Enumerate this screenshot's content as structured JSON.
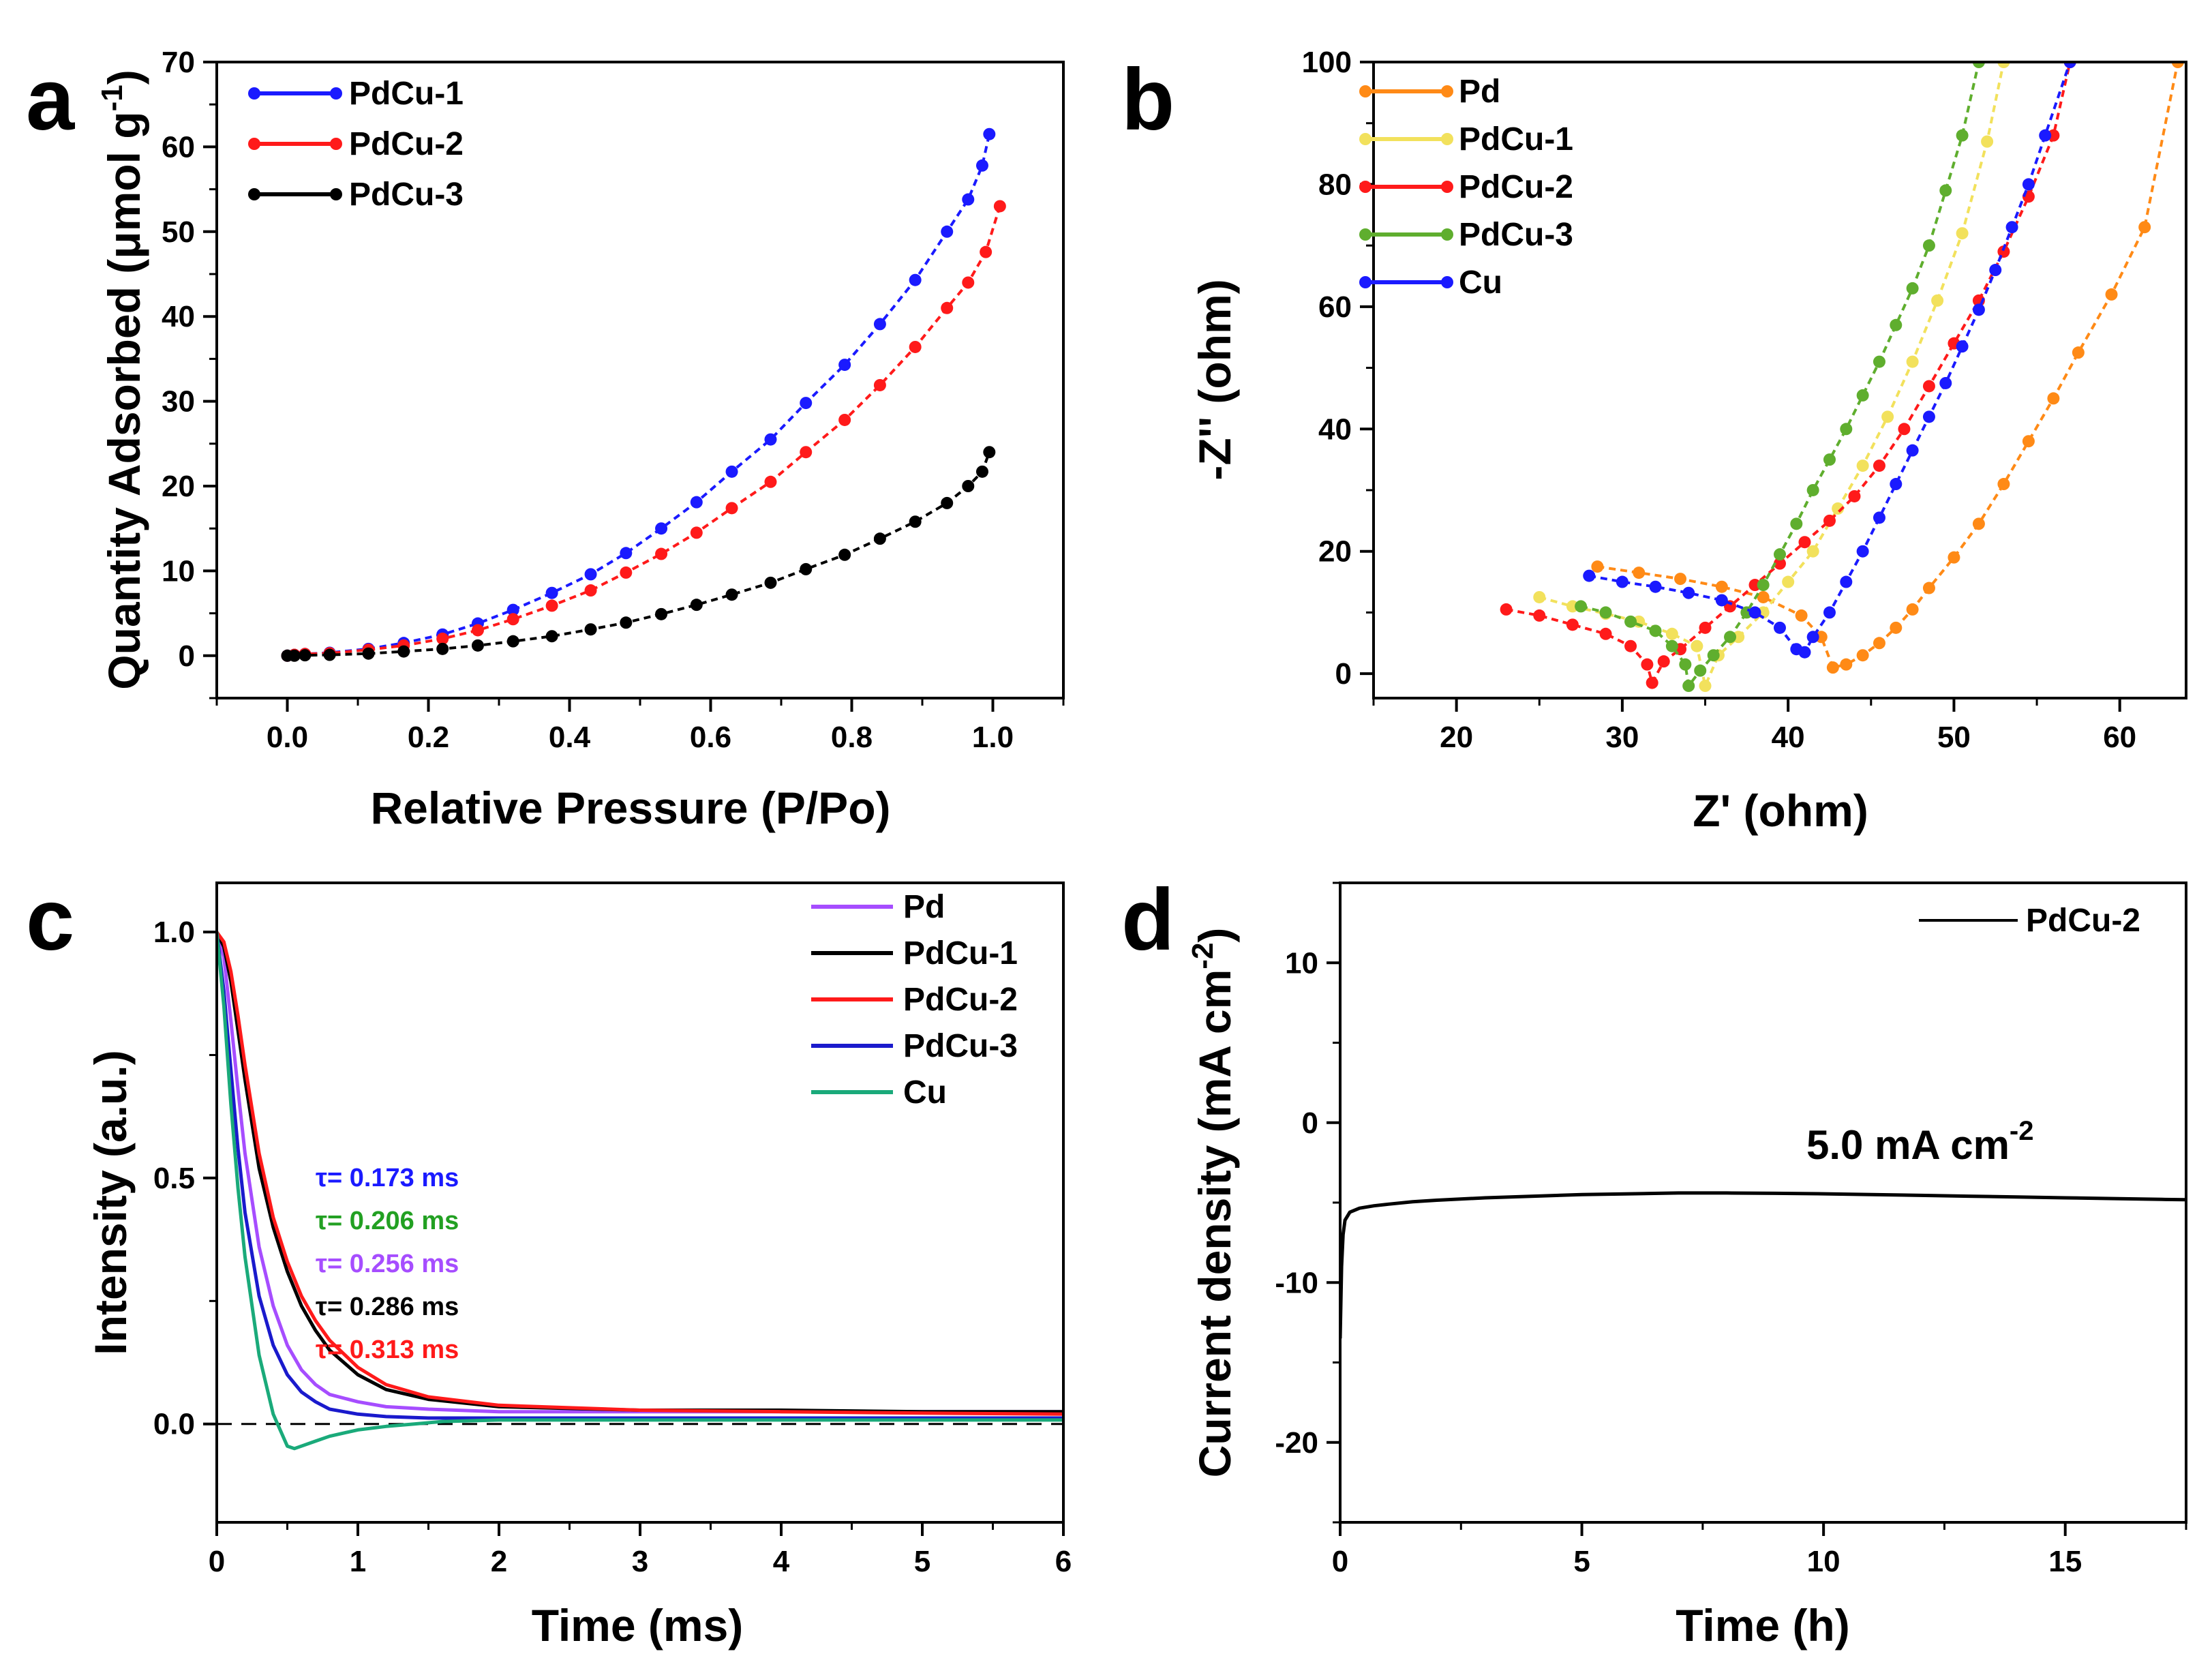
{
  "chart_data": [
    {
      "panel": "a",
      "type": "line",
      "xlabel": "Relative Pressure (P/Po)",
      "ylabel": "Quantity Adsorbed (μmol g",
      "ylabel_sup": "-1",
      "ylabel_close": ")",
      "xlim": [
        -0.1,
        1.1
      ],
      "ylim": [
        -5,
        70
      ],
      "xticks": [
        "0.0",
        "0.2",
        "0.4",
        "0.6",
        "0.8",
        "1.0"
      ],
      "xtick_values": [
        0,
        0.2,
        0.4,
        0.6,
        0.8,
        1.0
      ],
      "yticks": [
        "0",
        "10",
        "20",
        "30",
        "40",
        "50",
        "60",
        "70"
      ],
      "ytick_values": [
        0,
        10,
        20,
        30,
        40,
        50,
        60,
        70
      ],
      "legend_position": "top-left",
      "series": [
        {
          "name": "PdCu-1",
          "color": "#1a1aff",
          "marker": "circle",
          "x": [
            0.0,
            0.01,
            0.025,
            0.06,
            0.115,
            0.165,
            0.22,
            0.27,
            0.32,
            0.375,
            0.43,
            0.48,
            0.53,
            0.58,
            0.63,
            0.685,
            0.735,
            0.79,
            0.84,
            0.89,
            0.935,
            0.965,
            0.985,
            0.995
          ],
          "y": [
            0,
            0.1,
            0.2,
            0.35,
            0.8,
            1.5,
            2.5,
            3.8,
            5.4,
            7.4,
            9.6,
            12.1,
            15,
            18.1,
            21.7,
            25.5,
            29.8,
            34.3,
            39.1,
            44.3,
            50,
            53.8,
            57.8,
            61.5
          ]
        },
        {
          "name": "PdCu-2",
          "color": "#ff1a1a",
          "marker": "circle",
          "x": [
            0.0,
            0.01,
            0.025,
            0.06,
            0.115,
            0.165,
            0.22,
            0.27,
            0.32,
            0.375,
            0.43,
            0.48,
            0.53,
            0.58,
            0.63,
            0.685,
            0.735,
            0.79,
            0.84,
            0.89,
            0.935,
            0.965,
            0.99,
            1.01
          ],
          "y": [
            0,
            0.1,
            0.2,
            0.3,
            0.7,
            1.2,
            2,
            3,
            4.3,
            5.9,
            7.7,
            9.8,
            12,
            14.5,
            17.4,
            20.5,
            24,
            27.8,
            31.9,
            36.4,
            41,
            44,
            47.6,
            53
          ]
        },
        {
          "name": "PdCu-3",
          "color": "#000000",
          "marker": "circle",
          "x": [
            0.0,
            0.01,
            0.025,
            0.06,
            0.115,
            0.165,
            0.22,
            0.27,
            0.32,
            0.375,
            0.43,
            0.48,
            0.53,
            0.58,
            0.63,
            0.685,
            0.735,
            0.79,
            0.84,
            0.89,
            0.935,
            0.965,
            0.985,
            0.995
          ],
          "y": [
            0,
            0,
            0.05,
            0.1,
            0.25,
            0.5,
            0.8,
            1.2,
            1.7,
            2.3,
            3.1,
            3.9,
            4.9,
            6,
            7.2,
            8.6,
            10.2,
            11.9,
            13.8,
            15.8,
            18,
            20,
            21.7,
            24
          ]
        }
      ]
    },
    {
      "panel": "b",
      "type": "line",
      "xlabel": "Z' (ohm)",
      "ylabel": "-Z'' (ohm)",
      "xlim": [
        15,
        64
      ],
      "ylim": [
        -4,
        100
      ],
      "xticks": [
        "20",
        "30",
        "40",
        "50",
        "60"
      ],
      "xtick_values": [
        20,
        30,
        40,
        50,
        60
      ],
      "yticks": [
        "0",
        "20",
        "40",
        "60",
        "80",
        "100"
      ],
      "ytick_values": [
        0,
        20,
        40,
        60,
        80,
        100
      ],
      "legend_position": "top-left",
      "series": [
        {
          "name": "Pd",
          "color": "#ff8a16",
          "marker": "circle",
          "x": [
            28.5,
            31,
            33.5,
            36,
            38.5,
            40.8,
            42,
            42.7,
            43.5,
            44.5,
            45.5,
            46.5,
            47.5,
            48.5,
            50,
            51.5,
            53,
            54.5,
            56,
            57.5,
            59.5,
            61.5,
            63.5
          ],
          "y": [
            17.5,
            16.5,
            15.5,
            14.2,
            12.5,
            9.5,
            6,
            1,
            1.5,
            3,
            5,
            7.5,
            10.5,
            14,
            19,
            24.5,
            31,
            38,
            45,
            52.5,
            62,
            73,
            100
          ]
        },
        {
          "name": "PdCu-1",
          "color": "#f2e15c",
          "marker": "circle",
          "x": [
            25,
            27,
            29,
            31,
            33,
            34.5,
            35,
            35.8,
            37,
            38.5,
            40,
            41.5,
            43,
            44.5,
            46,
            47.5,
            49,
            50.5,
            52,
            53
          ],
          "y": [
            12.5,
            11,
            9.8,
            8.5,
            6.5,
            4.5,
            -2,
            3,
            6,
            10,
            15,
            20,
            27,
            34,
            42,
            51,
            61,
            72,
            87,
            100
          ]
        },
        {
          "name": "PdCu-2",
          "color": "#ff1a1a",
          "marker": "circle",
          "x": [
            23,
            25,
            27,
            29,
            30.5,
            31.5,
            31.8,
            32.5,
            33.5,
            35,
            36.5,
            38,
            39.5,
            41,
            42.5,
            44,
            45.5,
            47,
            48.5,
            50,
            51.5,
            53,
            54.5,
            56,
            57
          ],
          "y": [
            10.5,
            9.5,
            8,
            6.5,
            4.5,
            1.5,
            -1.5,
            2,
            4,
            7.5,
            11,
            14.5,
            18,
            21.5,
            25,
            29,
            34,
            40,
            47,
            54,
            61,
            69,
            78,
            88,
            100
          ]
        },
        {
          "name": "PdCu-3",
          "color": "#5fae2e",
          "marker": "circle",
          "x": [
            27.5,
            29,
            30.5,
            32,
            33,
            33.8,
            34,
            34.7,
            35.5,
            36.5,
            37.5,
            38.5,
            39.5,
            40.5,
            41.5,
            42.5,
            43.5,
            44.5,
            45.5,
            46.5,
            47.5,
            48.5,
            49.5,
            50.5,
            51.5
          ],
          "y": [
            11,
            10,
            8.5,
            7,
            4.5,
            1.5,
            -2,
            0.5,
            3,
            6,
            10,
            14.5,
            19.5,
            24.5,
            30,
            35,
            40,
            45.5,
            51,
            57,
            63,
            70,
            79,
            88,
            100
          ]
        },
        {
          "name": "Cu",
          "color": "#1a1aff",
          "marker": "circle",
          "x": [
            28,
            30,
            32,
            34,
            36,
            38,
            39.5,
            40.5,
            41,
            41.5,
            42.5,
            43.5,
            44.5,
            45.5,
            46.5,
            47.5,
            48.5,
            49.5,
            50.5,
            51.5,
            52.5,
            53.5,
            54.5,
            55.5,
            57
          ],
          "y": [
            16,
            15,
            14.2,
            13.2,
            12,
            10,
            7.5,
            4,
            3.5,
            6,
            10,
            15,
            20,
            25.5,
            31,
            36.5,
            42,
            47.5,
            53.5,
            59.5,
            66,
            73,
            80,
            88,
            100
          ]
        }
      ]
    },
    {
      "panel": "c",
      "type": "line",
      "xlabel": "Time (ms)",
      "ylabel": "Intensity (a.u.)",
      "xlim": [
        0,
        6
      ],
      "ylim": [
        -0.2,
        1.1
      ],
      "xticks": [
        "0",
        "1",
        "2",
        "3",
        "4",
        "5",
        "6"
      ],
      "xtick_values": [
        0,
        1,
        2,
        3,
        4,
        5,
        6
      ],
      "yticks": [
        "0.0",
        "0.5",
        "1.0"
      ],
      "ytick_values": [
        0,
        0.5,
        1.0
      ],
      "legend_position": "top-right",
      "zero_line": true,
      "series": [
        {
          "name": "Pd",
          "color": "#a64dff",
          "x": [
            0,
            0.05,
            0.1,
            0.15,
            0.2,
            0.3,
            0.4,
            0.5,
            0.6,
            0.7,
            0.8,
            1,
            1.2,
            1.5,
            2,
            3,
            4,
            5,
            6
          ],
          "y": [
            1,
            0.95,
            0.82,
            0.68,
            0.55,
            0.36,
            0.24,
            0.16,
            0.11,
            0.08,
            0.06,
            0.045,
            0.035,
            0.03,
            0.025,
            0.025,
            0.025,
            0.025,
            0.025
          ]
        },
        {
          "name": "PdCu-1",
          "color": "#000000",
          "x": [
            0,
            0.05,
            0.1,
            0.15,
            0.2,
            0.3,
            0.4,
            0.5,
            0.6,
            0.7,
            0.8,
            1,
            1.2,
            1.5,
            2,
            3,
            4,
            5,
            6
          ],
          "y": [
            1,
            0.97,
            0.9,
            0.8,
            0.7,
            0.52,
            0.4,
            0.31,
            0.24,
            0.19,
            0.15,
            0.1,
            0.07,
            0.05,
            0.035,
            0.028,
            0.028,
            0.025,
            0.025
          ]
        },
        {
          "name": "PdCu-2",
          "color": "#ff1a1a",
          "x": [
            0,
            0.05,
            0.1,
            0.15,
            0.2,
            0.3,
            0.4,
            0.5,
            0.6,
            0.7,
            0.8,
            1,
            1.2,
            1.5,
            2,
            3,
            4,
            5,
            6
          ],
          "y": [
            1,
            0.98,
            0.92,
            0.83,
            0.73,
            0.55,
            0.42,
            0.33,
            0.26,
            0.21,
            0.17,
            0.115,
            0.08,
            0.055,
            0.038,
            0.028,
            0.025,
            0.022,
            0.02
          ]
        },
        {
          "name": "PdCu-3",
          "color": "#1a1acc",
          "x": [
            0,
            0.05,
            0.1,
            0.15,
            0.2,
            0.3,
            0.4,
            0.5,
            0.6,
            0.7,
            0.8,
            1,
            1.2,
            1.5,
            2,
            3,
            4,
            5,
            6
          ],
          "y": [
            1,
            0.88,
            0.72,
            0.56,
            0.43,
            0.26,
            0.16,
            0.1,
            0.065,
            0.045,
            0.03,
            0.02,
            0.015,
            0.012,
            0.012,
            0.012,
            0.012,
            0.012,
            0.012
          ]
        },
        {
          "name": "Cu",
          "color": "#1aaa7a",
          "x": [
            0,
            0.05,
            0.1,
            0.15,
            0.2,
            0.3,
            0.4,
            0.5,
            0.55,
            0.6,
            0.7,
            0.8,
            1,
            1.2,
            1.4,
            1.6,
            2,
            3,
            4,
            5,
            6
          ],
          "y": [
            1,
            0.85,
            0.65,
            0.48,
            0.34,
            0.14,
            0.02,
            -0.045,
            -0.05,
            -0.045,
            -0.035,
            -0.025,
            -0.012,
            -0.005,
            0,
            0.005,
            0.008,
            0.008,
            0.008,
            0.008,
            0.008
          ]
        }
      ],
      "annotations": [
        {
          "text": "τ= 0.173 ms",
          "color": "#1a1aff"
        },
        {
          "text": "τ= 0.206 ms",
          "color": "#22a022"
        },
        {
          "text": "τ= 0.256 ms",
          "color": "#a64dff"
        },
        {
          "text": "τ= 0.286 ms",
          "color": "#000000"
        },
        {
          "text": "τ= 0.313 ms",
          "color": "#ff1a1a"
        }
      ]
    },
    {
      "panel": "d",
      "type": "line",
      "xlabel": "Time (h)",
      "ylabel": "Current density (mA cm",
      "ylabel_sup": "-2",
      "ylabel_close": ")",
      "xlim": [
        0,
        17.5
      ],
      "ylim": [
        -25,
        15
      ],
      "xticks": [
        "0",
        "5",
        "10",
        "15"
      ],
      "xtick_values": [
        0,
        5,
        10,
        15
      ],
      "yticks": [
        "-20",
        "-10",
        "0",
        "10"
      ],
      "ytick_values": [
        -20,
        -10,
        0,
        10
      ],
      "legend_position": "top-right",
      "annotation": {
        "text": "5.0 mA cm",
        "sup": "-2"
      },
      "series": [
        {
          "name": "PdCu-2",
          "color": "#000000",
          "x": [
            0,
            0.03,
            0.06,
            0.1,
            0.2,
            0.4,
            0.7,
            1,
            1.5,
            2,
            3,
            4,
            5,
            6,
            7,
            8,
            9,
            10,
            11,
            12,
            13,
            14,
            15,
            16,
            17,
            17.5
          ],
          "y": [
            -13.5,
            -9,
            -7,
            -6.1,
            -5.6,
            -5.35,
            -5.2,
            -5.1,
            -4.95,
            -4.85,
            -4.7,
            -4.6,
            -4.5,
            -4.45,
            -4.4,
            -4.4,
            -4.42,
            -4.45,
            -4.5,
            -4.55,
            -4.6,
            -4.65,
            -4.7,
            -4.75,
            -4.8,
            -4.82
          ]
        }
      ]
    }
  ]
}
